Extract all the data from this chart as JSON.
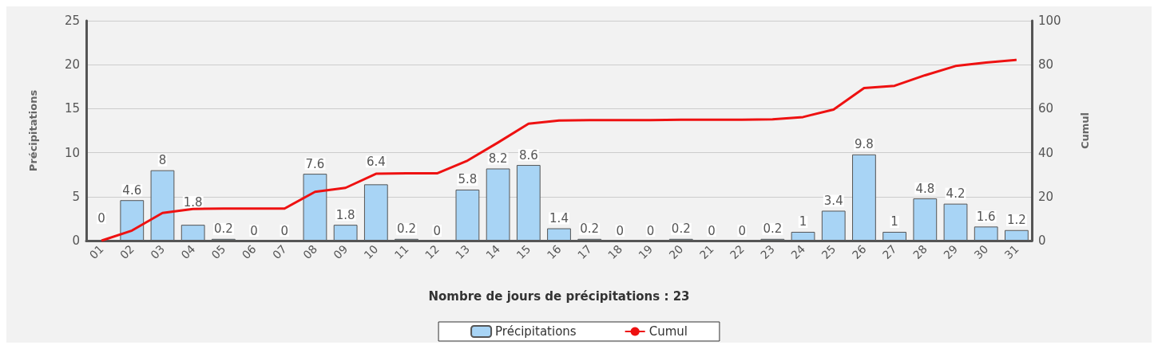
{
  "chart_data": {
    "type": "bar",
    "xlabel": "Nombre de jours de précipitations : 23",
    "ylabel": "Précipitations",
    "y2label": "Cumul",
    "categories": [
      "01",
      "02",
      "03",
      "04",
      "05",
      "06",
      "07",
      "08",
      "09",
      "10",
      "11",
      "12",
      "13",
      "14",
      "15",
      "16",
      "17",
      "18",
      "19",
      "20",
      "21",
      "22",
      "23",
      "24",
      "25",
      "26",
      "27",
      "28",
      "29",
      "30",
      "31"
    ],
    "series": [
      {
        "name": "Précipitations",
        "color": "#a8d4f5",
        "values": [
          0,
          4.6,
          8,
          1.8,
          0.2,
          0,
          0,
          7.6,
          1.8,
          6.4,
          0.2,
          0,
          5.8,
          8.2,
          8.6,
          1.4,
          0.2,
          0,
          0,
          0.2,
          0,
          0,
          0.2,
          1,
          3.4,
          9.8,
          1,
          4.8,
          4.2,
          1.6,
          1.2
        ],
        "value_labels": [
          "0",
          "4.6",
          "8",
          "1.8",
          "0.2",
          "0",
          "0",
          "7.6",
          "1.8",
          "6.4",
          "0.2",
          "0",
          "5.8",
          "8.2",
          "8.6",
          "1.4",
          "0.2",
          "0",
          "0",
          "0.2",
          "0",
          "0",
          "0.2",
          "1",
          "3.4",
          "9.8",
          "1",
          "4.8",
          "4.2",
          "1.6",
          "1.2"
        ]
      },
      {
        "name": "Cumul",
        "type": "line",
        "axis": "y2",
        "color": "#ee1111",
        "values": [
          0,
          4.6,
          12.6,
          14.4,
          14.6,
          14.6,
          14.6,
          22.2,
          24,
          30.4,
          30.6,
          30.6,
          36.4,
          44.6,
          53.2,
          54.6,
          54.8,
          54.8,
          54.8,
          55,
          55,
          55,
          55.2,
          56.2,
          59.6,
          69.4,
          70.4,
          75.2,
          79.4,
          81,
          82.2
        ]
      }
    ],
    "ylim": [
      0,
      25
    ],
    "yticks": [
      0,
      5,
      10,
      15,
      20,
      25
    ],
    "y2lim": [
      0,
      100
    ],
    "y2ticks": [
      0,
      20,
      40,
      60,
      80,
      100
    ],
    "grid": "y",
    "legend": "bottom",
    "marker": "none",
    "line_style": "solid"
  }
}
